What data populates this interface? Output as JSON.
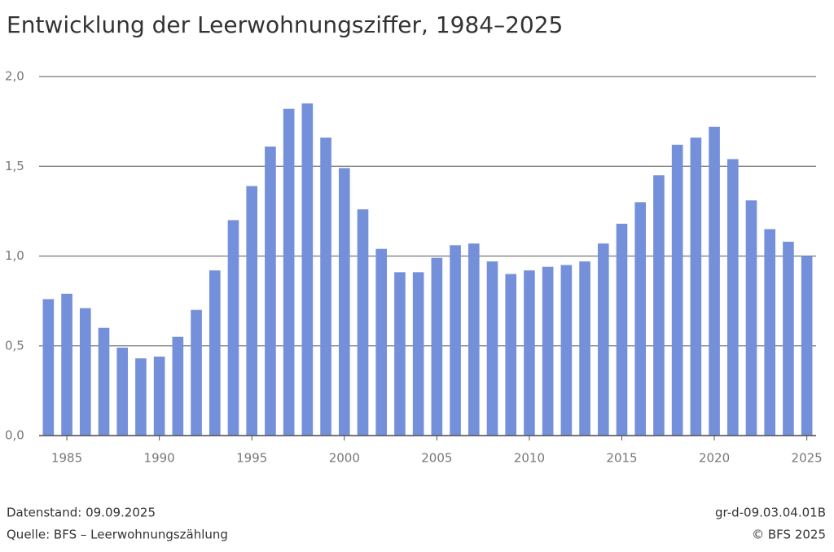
{
  "chart_data": {
    "type": "bar",
    "title": "Entwicklung der Leerwohnungsziffer, 1984–2025",
    "x": [
      1984,
      1985,
      1986,
      1987,
      1988,
      1989,
      1990,
      1991,
      1992,
      1993,
      1994,
      1995,
      1996,
      1997,
      1998,
      1999,
      2000,
      2001,
      2002,
      2003,
      2004,
      2005,
      2006,
      2007,
      2008,
      2009,
      2010,
      2011,
      2012,
      2013,
      2014,
      2015,
      2016,
      2017,
      2018,
      2019,
      2020,
      2021,
      2022,
      2023,
      2024,
      2025
    ],
    "values": [
      0.76,
      0.79,
      0.71,
      0.6,
      0.49,
      0.43,
      0.44,
      0.55,
      0.7,
      0.92,
      1.2,
      1.39,
      1.61,
      1.82,
      1.85,
      1.66,
      1.49,
      1.26,
      1.04,
      0.91,
      0.91,
      0.99,
      1.06,
      1.07,
      0.97,
      0.9,
      0.92,
      0.94,
      0.95,
      0.97,
      1.07,
      1.18,
      1.3,
      1.45,
      1.62,
      1.66,
      1.72,
      1.54,
      1.31,
      1.15,
      1.08,
      1.0
    ],
    "color": "#7590da",
    "xlim": [
      1983.5,
      2025.5
    ],
    "xticks": [
      1985,
      1990,
      1995,
      2000,
      2005,
      2010,
      2015,
      2020,
      2025
    ],
    "ylim": [
      0,
      2
    ],
    "yticks": [
      {
        "value": 0,
        "label": "0,0"
      },
      {
        "value": 0.5,
        "label": "0,5"
      },
      {
        "value": 1,
        "label": "1,0"
      },
      {
        "value": 1.5,
        "label": "1,5"
      },
      {
        "value": 2,
        "label": "2,0"
      }
    ],
    "grid": true,
    "footer_left": [
      "Datenstand: 09.09.2025",
      "Quelle: BFS – Leerwohnungszählung"
    ],
    "footer_right": [
      "gr-d-09.03.04.01B",
      "© BFS 2025"
    ]
  }
}
